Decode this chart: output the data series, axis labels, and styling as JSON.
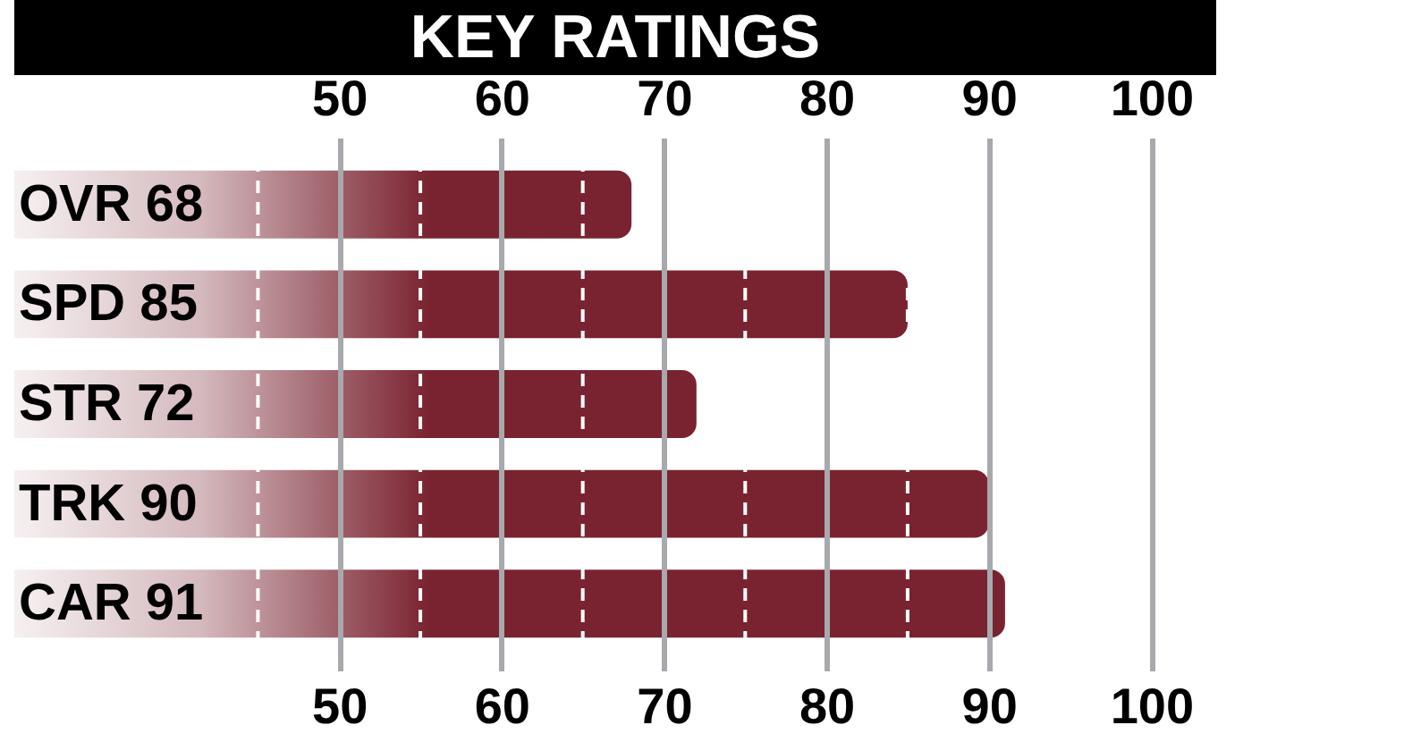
{
  "chart_data": {
    "type": "bar",
    "orientation": "horizontal",
    "title": "KEY RATINGS",
    "categories": [
      "OVR 68",
      "SPD 85",
      "STR 72",
      "TRK 90",
      "CAR 91"
    ],
    "values": [
      68,
      85,
      72,
      90,
      91
    ],
    "color": "#7a2330",
    "xlim": [
      30,
      104
    ],
    "xticks": [
      50,
      60,
      70,
      80,
      90,
      100
    ],
    "x2lim": [
      30,
      104
    ],
    "x2ticks": [
      50,
      60,
      70,
      80,
      90,
      100
    ],
    "grid": "x",
    "ref_lines": [
      {
        "axis": "x",
        "value": 45,
        "color": "#ffffff",
        "line_style": "dashed"
      },
      {
        "axis": "x",
        "value": 55,
        "color": "#ffffff",
        "line_style": "dashed"
      },
      {
        "axis": "x",
        "value": 65,
        "color": "#ffffff",
        "line_style": "dashed"
      },
      {
        "axis": "x",
        "value": 75,
        "color": "#ffffff",
        "line_style": "dashed"
      },
      {
        "axis": "x",
        "value": 85,
        "color": "#ffffff",
        "line_style": "dashed"
      }
    ]
  }
}
